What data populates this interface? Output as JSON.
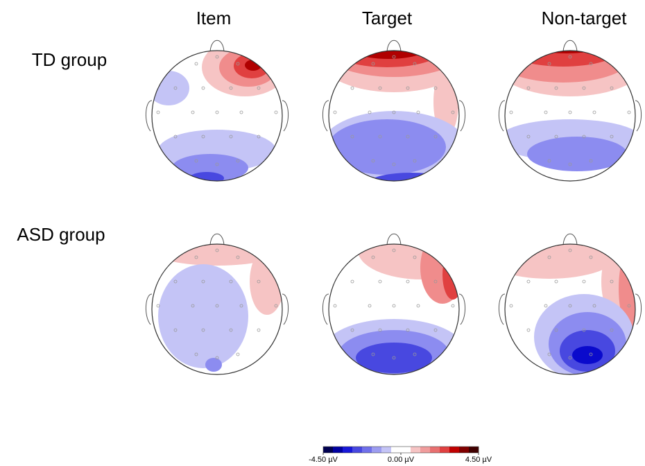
{
  "columns": [
    "Item",
    "Target",
    "Non-target"
  ],
  "rows": [
    "TD group",
    "ASD group"
  ],
  "colorbar": {
    "labels": [
      "-4.50 µV",
      "0.00 µV",
      "4.50 µV"
    ]
  }
}
